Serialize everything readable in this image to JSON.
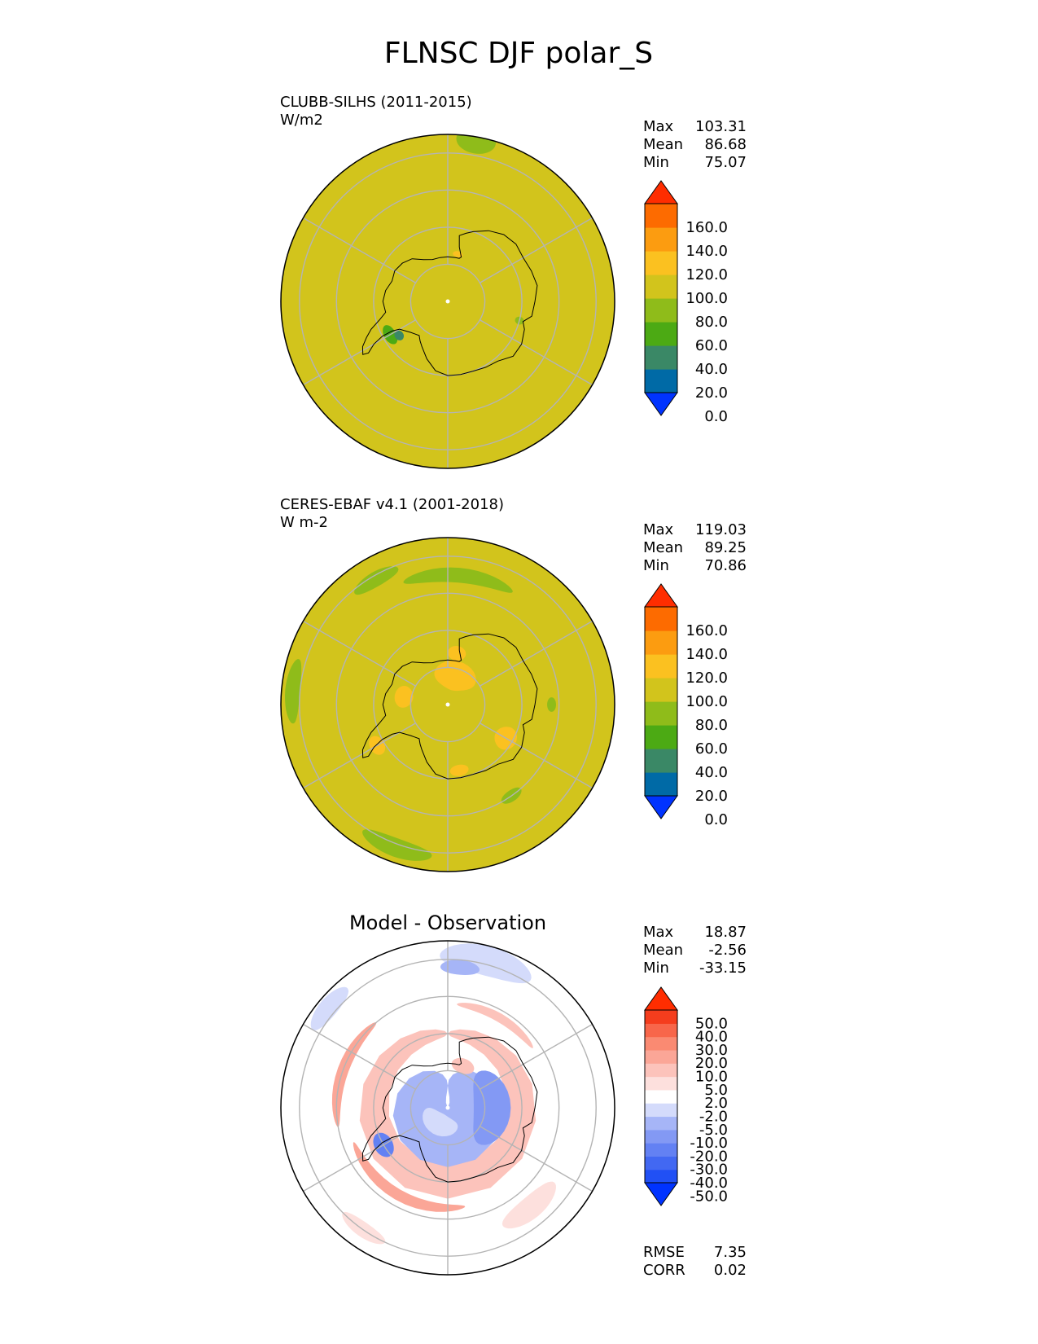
{
  "figure": {
    "title": "FLNSC DJF polar_S"
  },
  "chart_data": [
    {
      "type": "heatmap",
      "projection": "south-polar-stereographic",
      "name": "test",
      "title": "CLUBB-SILHS (2011-2015)",
      "units": "W/m2",
      "stats": [
        {
          "label": "Max",
          "value": "103.31"
        },
        {
          "label": "Mean",
          "value": "86.68"
        },
        {
          "label": "Min",
          "value": "75.07"
        }
      ],
      "colorbar": {
        "ticks": [
          "160.0",
          "140.0",
          "120.0",
          "100.0",
          "80.0",
          "60.0",
          "40.0",
          "20.0",
          "0.0"
        ],
        "colors": [
          "#0033ff",
          "#006aa6",
          "#3a8866",
          "#4caa14",
          "#8fbc1a",
          "#d2c41c",
          "#fbc120",
          "#fc9c10",
          "#fd6b00",
          "#ff2d00"
        ],
        "extend": "both"
      },
      "background_color": "#d2c41c",
      "fields": [
        {
          "lon": 170,
          "lat": -46,
          "rlon": 7,
          "rlat": 3.5,
          "color": "#8fbc1a"
        },
        {
          "lon": -60,
          "lat": -72,
          "rlon": 9,
          "rlat": 1.6,
          "color": "#4caa14"
        },
        {
          "lon": -55,
          "lat": -74,
          "rlon": 5,
          "rlat": 1.2,
          "color": "#3a8866"
        },
        {
          "lon": 75,
          "lat": -70,
          "rlon": 3,
          "rlat": 1.2,
          "color": "#8fbc1a"
        },
        {
          "lon": 168,
          "lat": -77,
          "rlon": 6,
          "rlat": 0.8,
          "color": "#fbc120"
        }
      ]
    },
    {
      "type": "heatmap",
      "projection": "south-polar-stereographic",
      "name": "reference",
      "title": "CERES-EBAF v4.1 (2001-2018)",
      "units": "W m-2",
      "stats": [
        {
          "label": "Max",
          "value": "119.03"
        },
        {
          "label": "Mean",
          "value": "89.25"
        },
        {
          "label": "Min",
          "value": "70.86"
        }
      ],
      "colorbar": {
        "ticks": [
          "160.0",
          "140.0",
          "120.0",
          "100.0",
          "80.0",
          "60.0",
          "40.0",
          "20.0",
          "0.0"
        ],
        "colors": [
          "#0033ff",
          "#006aa6",
          "#3a8866",
          "#4caa14",
          "#8fbc1a",
          "#d2c41c",
          "#fbc120",
          "#fc9c10",
          "#fd6b00",
          "#ff2d00"
        ],
        "extend": "both"
      },
      "background_color": "#d2c41c",
      "fields": [
        {
          "lon": -20,
          "lat": -49,
          "rlon": 14,
          "rlat": 2.5,
          "color": "#8fbc1a"
        },
        {
          "lon": -95,
          "lat": -48,
          "rlon": 12,
          "rlat": 2.0,
          "color": "#8fbc1a"
        },
        {
          "lon": -150,
          "lat": -51,
          "rlon": 10,
          "rlat": 2.0,
          "color": "#8fbc1a"
        },
        {
          "lon": 175,
          "lat": -55,
          "rlon": 25,
          "rlat": 2.0,
          "color": "#8fbc1a"
        },
        {
          "lon": 35,
          "lat": -60,
          "rlon": 6,
          "rlat": 1.5,
          "color": "#8fbc1a"
        },
        {
          "lon": 90,
          "lat": -62,
          "rlon": 4,
          "rlat": 1.2,
          "color": "#8fbc1a"
        },
        {
          "lon": -60,
          "lat": -68,
          "rlon": 7,
          "rlat": 2.0,
          "color": "#fbc120"
        },
        {
          "lon": 60,
          "lat": -72,
          "rlon": 10,
          "rlat": 3.0,
          "color": "#fbc120"
        },
        {
          "lon": 10,
          "lat": -72,
          "rlon": 8,
          "rlat": 1.5,
          "color": "#fbc120"
        },
        {
          "lon": 165,
          "lat": -82,
          "rlon": 40,
          "rlat": 4.0,
          "color": "#fbc120"
        },
        {
          "lon": -100,
          "lat": -78,
          "rlon": 14,
          "rlat": 2.5,
          "color": "#fbc120"
        },
        {
          "lon": 170,
          "lat": -76,
          "rlon": 10,
          "rlat": 2.0,
          "color": "#fbc120"
        }
      ]
    },
    {
      "type": "heatmap",
      "projection": "south-polar-stereographic",
      "name": "difference",
      "title": "Model - Observation",
      "stats": [
        {
          "label": "Max",
          "value": "18.87"
        },
        {
          "label": "Mean",
          "value": "-2.56"
        },
        {
          "label": "Min",
          "value": "-33.15"
        }
      ],
      "metrics": [
        {
          "label": "RMSE",
          "value": "7.35"
        },
        {
          "label": "CORR",
          "value": "0.02"
        }
      ],
      "colorbar": {
        "ticks": [
          "50.0",
          "40.0",
          "30.0",
          "20.0",
          "10.0",
          "5.0",
          "2.0",
          "-2.0",
          "-5.0",
          "-10.0",
          "-20.0",
          "-30.0",
          "-40.0",
          "-50.0"
        ],
        "colors": [
          "#0033ff",
          "#2150f5",
          "#4268f2",
          "#6381f3",
          "#8399f4",
          "#a6b5f7",
          "#d4dbfb",
          "#ffffff",
          "#fde0dd",
          "#fcc3bb",
          "#fba697",
          "#fa8a72",
          "#f8664a",
          "#f53d1d",
          "#ff2d00"
        ],
        "extend": "both"
      },
      "background_color": "#ffffff",
      "fields": [
        {
          "lon": 0,
          "lat": -70,
          "rlon": 180,
          "rlat": 4.5,
          "color": "#fcc3bb"
        },
        {
          "lon": -30,
          "lat": -63,
          "rlon": 40,
          "rlat": 1.5,
          "color": "#fba697"
        },
        {
          "lon": -110,
          "lat": -60,
          "rlon": 30,
          "rlat": 1.5,
          "color": "#fba697"
        },
        {
          "lon": 150,
          "lat": -62,
          "rlon": 25,
          "rlat": 1.2,
          "color": "#fcc3bb"
        },
        {
          "lon": 165,
          "lat": -49,
          "rlon": 18,
          "rlat": 4.0,
          "color": "#d4dbfb"
        },
        {
          "lon": 175,
          "lat": -52,
          "rlon": 8,
          "rlat": 2.0,
          "color": "#a6b5f7"
        },
        {
          "lon": -130,
          "lat": -48,
          "rlon": 10,
          "rlat": 2.5,
          "color": "#d4dbfb"
        },
        {
          "lon": -35,
          "lat": -50,
          "rlon": 10,
          "rlat": 2.0,
          "color": "#fde0dd"
        },
        {
          "lon": 40,
          "lat": -55,
          "rlon": 15,
          "rlat": 3.0,
          "color": "#fde0dd"
        },
        {
          "lon": 0,
          "lat": -84,
          "rlon": 180,
          "rlat": 10.0,
          "color": "#a6b5f7"
        },
        {
          "lon": -60,
          "lat": -70,
          "rlon": 10,
          "rlat": 2.5,
          "color": "#6381f3"
        },
        {
          "lon": 90,
          "lat": -78,
          "rlon": 50,
          "rlat": 5.0,
          "color": "#8399f4"
        },
        {
          "lon": -30,
          "lat": -85,
          "rlon": 60,
          "rlat": 3.0,
          "color": "#d4dbfb"
        },
        {
          "lon": 160,
          "lat": -78,
          "rlon": 15,
          "rlat": 2.0,
          "color": "#fcc3bb"
        }
      ]
    }
  ]
}
